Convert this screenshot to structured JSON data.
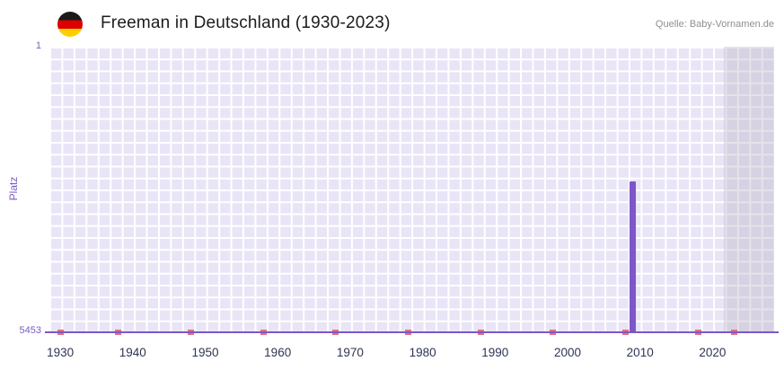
{
  "header": {
    "title": "Freeman in Deutschland (1930-2023)",
    "source": "Quelle: Baby-Vornamen.de",
    "flag_icon": "german-flag-icon"
  },
  "chart_data": {
    "type": "bar",
    "title": "Freeman in Deutschland (1930-2023)",
    "xlabel": "",
    "ylabel": "Platz",
    "y_axis": {
      "min": 1,
      "max": 5453,
      "inverted": true,
      "top_label": "1",
      "bottom_label": "5453"
    },
    "x_axis": {
      "min": 1928.5,
      "max": 2028.5,
      "ticks": [
        1930,
        1940,
        1950,
        1960,
        1970,
        1980,
        1990,
        2000,
        2010,
        2020
      ]
    },
    "series": [
      {
        "name": "Platz",
        "points": [
          {
            "year": 2009,
            "rank": 2573
          }
        ]
      }
    ],
    "no_rank_marker_years": [
      1930,
      1938,
      1948,
      1958,
      1968,
      1978,
      1988,
      1998,
      2008,
      2018,
      2023
    ],
    "shaded_region": {
      "from_year": 2021.5,
      "to_year": 2028.5
    },
    "grid": true,
    "legend": "none",
    "colors": {
      "bar": "#7d57c9",
      "no_rank_marker": "#e4717f",
      "plot_background": "#e9e5f7",
      "grid_line": "#ffffff",
      "axis_line": "#7d57c9",
      "y_tick_text": "#7c5cc4",
      "x_tick_text": "#2e3452",
      "shaded_region": "rgba(173,168,188,0.32)"
    }
  }
}
